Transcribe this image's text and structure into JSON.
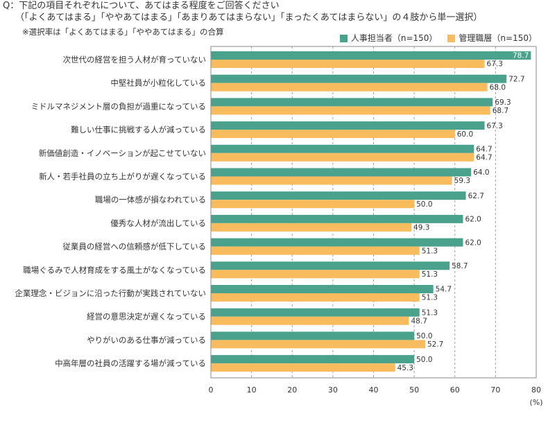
{
  "question": {
    "line1": "Q：下記の項目それぞれについて、あてはまる程度をご回答ください",
    "line2": "（「よくあてはまる」「ややあてはまる」「あまりあてはまらない」「まったくあてはまらない」の４肢から単一選択）",
    "note": "※選択率は「よくあてはまる」「ややあてはまる」の合算"
  },
  "chart_data": {
    "type": "bar",
    "horizontal": true,
    "categories": [
      "次世代の経営を担う人材が育っていない",
      "中堅社員が小粒化している",
      "ミドルマネジメント層の負担が過重になっている",
      "難しい仕事に挑戦する人が減っている",
      "新価値創造・イノベーションが起こせていない",
      "新人・若手社員の立ち上がりが遅くなっている",
      "職場の一体感が損なわれている",
      "優秀な人材が流出している",
      "従業員の経営への信頼感が低下している",
      "職場ぐるみで人材育成をする風土がなくなっている",
      "企業理念・ビジョンに沿った行動が実践されていない",
      "経営の意思決定が遅くなっている",
      "やりがいのある仕事が減っている",
      "中高年層の社員の活躍する場が減っている"
    ],
    "series": [
      {
        "name": "人事担当者（n=150）",
        "color": "#4aa28d",
        "values": [
          78.7,
          72.7,
          69.3,
          67.3,
          64.7,
          64.0,
          62.7,
          62.0,
          62.0,
          58.7,
          54.7,
          51.3,
          50.0,
          50.0
        ]
      },
      {
        "name": "管理職層（n=150）",
        "color": "#f8bc5f",
        "values": [
          67.3,
          68.0,
          68.7,
          60.0,
          64.7,
          59.3,
          50.0,
          49.3,
          51.3,
          51.3,
          51.3,
          48.7,
          52.7,
          45.3
        ]
      }
    ],
    "xlim": [
      0,
      80
    ],
    "xticks": [
      0,
      10,
      20,
      30,
      40,
      50,
      60,
      70,
      80
    ],
    "unit_label": "(%)",
    "grid": true,
    "legend_position": "top-right"
  }
}
